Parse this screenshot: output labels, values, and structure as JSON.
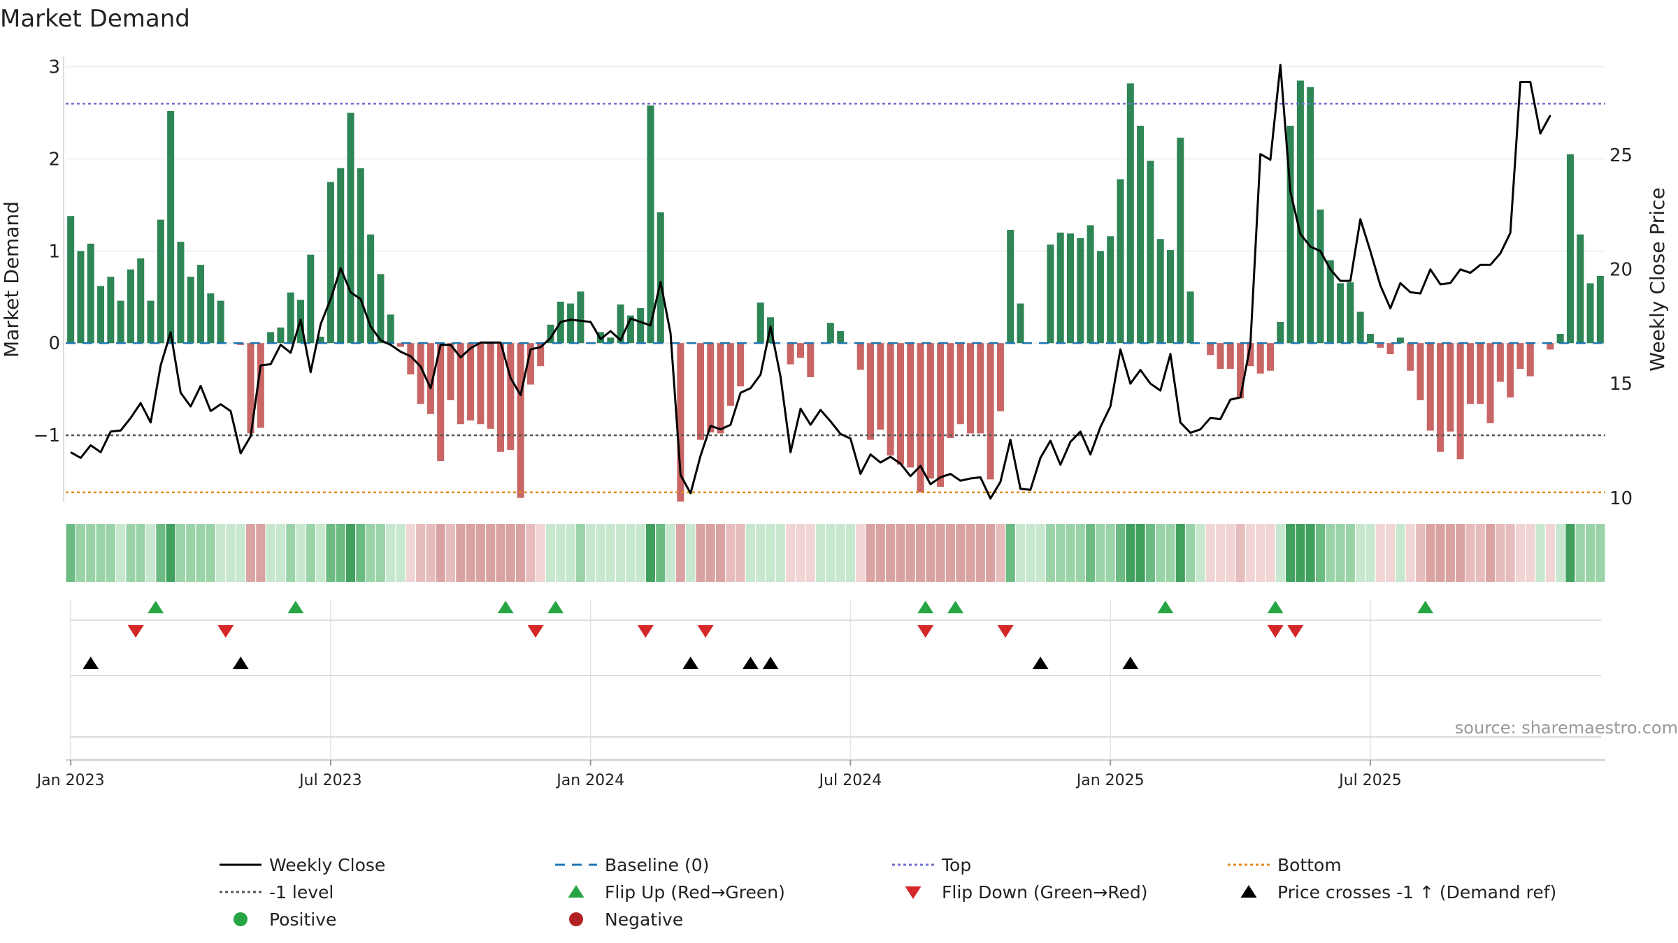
{
  "chart_data": {
    "type": "bar",
    "title": "Market Demand",
    "ylabel": "Market Demand",
    "y2label": "Weekly Close Price",
    "ylim": [
      -1.72,
      3.02
    ],
    "y2lim": [
      9.84,
      28.95
    ],
    "yticks": [
      "3",
      "2",
      "1",
      "0",
      "−1"
    ],
    "ytick_values": [
      3,
      2,
      1,
      0,
      -1
    ],
    "y2ticks": [
      "25",
      "20",
      "15",
      "10"
    ],
    "y2tick_values": [
      25,
      20,
      15,
      10
    ],
    "xticks": [
      "Jan 2023",
      "Jul 2023",
      "Jan 2024",
      "Jul 2024",
      "Jan 2025",
      "Jul 2025"
    ],
    "xtick_weeks": [
      0.5,
      26.5,
      52.5,
      78.5,
      104.5,
      130.5
    ],
    "reference_lines": {
      "top": 2.6,
      "minus_one": -1.0,
      "bottom": -1.62,
      "baseline": 0
    },
    "demand": [
      1.38,
      1.0,
      1.08,
      0.62,
      0.72,
      0.46,
      0.8,
      0.92,
      0.46,
      1.34,
      2.52,
      1.1,
      0.72,
      0.85,
      0.54,
      0.46,
      0.0,
      -0.02,
      -0.98,
      -0.92,
      0.12,
      0.17,
      0.55,
      0.47,
      0.96,
      0.07,
      1.75,
      1.9,
      2.5,
      1.9,
      1.18,
      0.75,
      0.31,
      -0.04,
      -0.34,
      -0.66,
      -0.77,
      -1.28,
      -0.62,
      -0.88,
      -0.84,
      -0.88,
      -0.93,
      -1.18,
      -1.16,
      -1.68,
      -0.45,
      -0.25,
      0.2,
      0.45,
      0.43,
      0.56,
      0.0,
      0.12,
      0.06,
      0.42,
      0.3,
      0.38,
      2.58,
      1.42,
      0.0,
      -1.72,
      0.0,
      -1.05,
      -0.97,
      -0.98,
      -0.68,
      -0.47,
      0.0,
      0.44,
      0.28,
      0.0,
      -0.23,
      -0.16,
      -0.37,
      0.0,
      0.22,
      0.13,
      0.0,
      -0.29,
      -1.05,
      -0.94,
      -1.22,
      -1.32,
      -1.35,
      -1.62,
      -1.47,
      -1.56,
      -1.03,
      -0.88,
      -0.98,
      -0.98,
      -1.48,
      -0.74,
      1.23,
      0.43,
      0.0,
      0.0,
      1.07,
      1.2,
      1.19,
      1.14,
      1.28,
      1.0,
      1.16,
      1.78,
      2.82,
      2.36,
      1.98,
      1.13,
      1.01,
      2.23,
      0.56,
      0.0,
      -0.13,
      -0.28,
      -0.28,
      -0.6,
      -0.25,
      -0.33,
      -0.3,
      0.23,
      2.36,
      2.85,
      2.78,
      1.45,
      0.9,
      0.65,
      0.66,
      0.34,
      0.1,
      -0.05,
      -0.12,
      0.06,
      -0.3,
      -0.62,
      -0.95,
      -1.18,
      -0.96,
      -1.26,
      -0.66,
      -0.66,
      -0.87,
      -0.42,
      -0.59,
      -0.28,
      -0.36,
      0.0,
      -0.07,
      0.1,
      2.05,
      1.18,
      0.65,
      0.73
    ],
    "weekly_close": [
      12.0,
      11.75,
      12.3,
      12.0,
      12.9,
      12.95,
      13.5,
      14.15,
      13.3,
      15.8,
      17.25,
      14.6,
      14.0,
      14.9,
      13.8,
      14.1,
      13.8,
      11.95,
      12.7,
      15.8,
      15.85,
      16.7,
      16.35,
      17.8,
      15.5,
      17.6,
      18.7,
      20.05,
      19.0,
      18.7,
      17.5,
      16.9,
      16.7,
      16.4,
      16.2,
      15.75,
      14.8,
      16.7,
      16.7,
      16.15,
      16.55,
      16.8,
      16.8,
      16.8,
      15.25,
      14.5,
      16.5,
      16.6,
      17.0,
      17.7,
      17.8,
      17.75,
      17.7,
      16.95,
      17.3,
      16.9,
      17.85,
      17.7,
      17.55,
      19.45,
      17.2,
      11.0,
      10.2,
      11.85,
      13.15,
      13.0,
      13.2,
      14.6,
      14.8,
      15.4,
      17.5,
      15.3,
      12.0,
      13.9,
      13.2,
      13.85,
      13.35,
      12.8,
      12.6,
      11.05,
      11.9,
      11.55,
      11.8,
      11.5,
      10.95,
      11.4,
      10.6,
      10.9,
      11.05,
      10.75,
      10.85,
      10.9,
      9.97,
      10.7,
      12.55,
      10.4,
      10.35,
      11.75,
      12.5,
      11.45,
      12.45,
      12.9,
      11.9,
      13.1,
      14.0,
      16.5,
      15.0,
      15.6,
      15.0,
      14.7,
      16.3,
      13.3,
      12.85,
      13.0,
      13.5,
      13.45,
      14.3,
      14.4,
      16.7,
      25.05,
      24.8,
      28.95,
      23.4,
      21.55,
      21.0,
      20.8,
      20.0,
      19.5,
      19.5,
      22.2,
      20.8,
      19.3,
      18.3,
      19.4,
      19.0,
      18.95,
      20.0,
      19.35,
      19.4,
      20.0,
      19.85,
      20.2,
      20.2,
      20.7,
      21.6,
      28.2,
      28.2,
      25.95,
      26.75
    ],
    "intensity_shades": {
      "pos_dark": "#42a05f",
      "pos_mid": "#6cbb83",
      "pos_light": "#9ad3a8",
      "pos_pale": "#c7e7cf",
      "neg_light": "#f1d4d4",
      "neg_mid": "#e7bcbc",
      "neg_dark": "#daa3a3"
    },
    "flip_up_weeks": [
      9.0,
      23.0,
      44.0,
      49.0,
      86.0,
      89.0,
      110.0,
      121.0,
      136.0
    ],
    "flip_down_weeks": [
      7.0,
      16.0,
      47.0,
      58.0,
      64.0,
      86.0,
      94.0,
      121.0,
      123.0
    ],
    "price_cross_weeks": [
      2.5,
      17.5,
      62.5,
      68.5,
      70.5,
      97.5,
      106.5
    ],
    "legend": [
      {
        "label": "Weekly Close",
        "marker": "line-black"
      },
      {
        "label": "Baseline (0)",
        "marker": "dash-blue"
      },
      {
        "label": "Top",
        "marker": "dot-purple"
      },
      {
        "label": "Bottom",
        "marker": "dot-orange"
      },
      {
        "label": "-1 level",
        "marker": "dot-gray"
      },
      {
        "label": "Flip Up (Red→Green)",
        "marker": "triangle-up-green"
      },
      {
        "label": "Flip Down (Green→Red)",
        "marker": "triangle-down-red"
      },
      {
        "label": "Price crosses -1 ↑ (Demand ref)",
        "marker": "triangle-up-black"
      },
      {
        "label": "Positive",
        "marker": "circle-green"
      },
      {
        "label": "Negative",
        "marker": "circle-red"
      }
    ],
    "source": "source: sharemaestro.com",
    "colors": {
      "positive_bar": "#2e8555",
      "negative_bar": "#c96565",
      "close_line": "#000000",
      "baseline": "#1f77b4",
      "top_line": "#6f6fcf",
      "bottom_line": "#e08a1e",
      "minus_one_line": "#555555",
      "flip_up": "#27a545",
      "flip_down": "#d62728",
      "price_cross": "#000000",
      "legend_positive": "#27a545",
      "legend_negative": "#b22222"
    }
  }
}
